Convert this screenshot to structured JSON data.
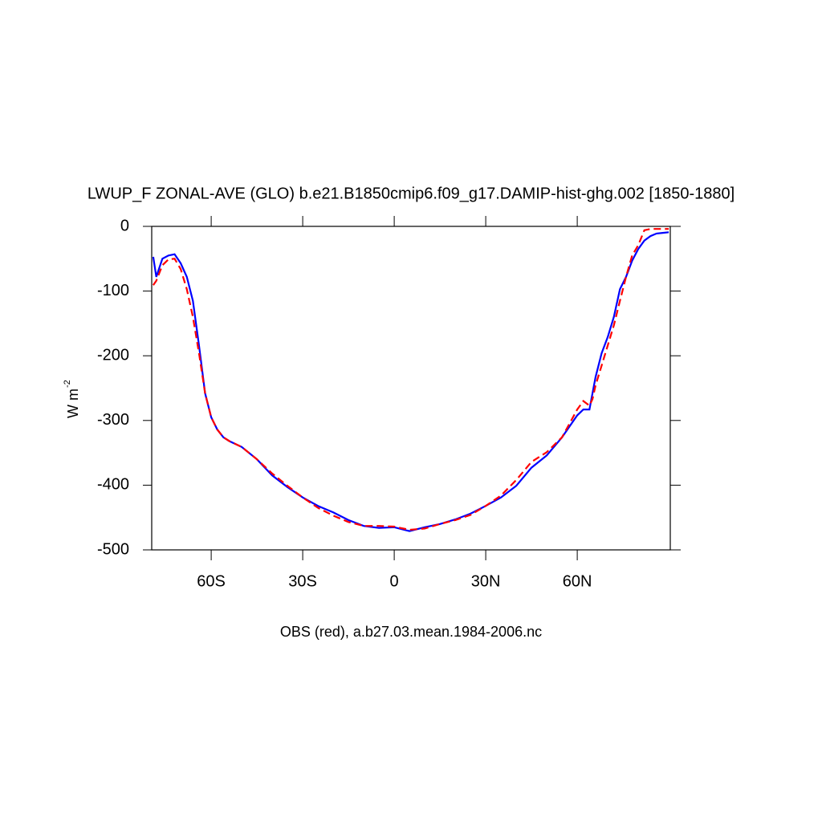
{
  "chart_data": {
    "type": "line",
    "title": "LWUP_F ZONAL-AVE (GLO) b.e21.B1850cmip6.f09_g17.DAMIP-hist-ghg.002 [1850-1880]",
    "x_label": "OBS (red), a.b27.03.mean.1984-2006.nc",
    "y_label": {
      "text": "W m",
      "superscript": "-2"
    },
    "x": [
      -79,
      -78,
      -76,
      -74,
      -72,
      -70,
      -68,
      -66,
      -64,
      -62,
      -60,
      -58,
      -56,
      -54,
      -50,
      -45,
      -40,
      -35,
      -30,
      -25,
      -20,
      -15,
      -10,
      -5,
      0,
      5,
      10,
      15,
      20,
      25,
      30,
      35,
      40,
      45,
      50,
      55,
      60,
      62,
      64,
      65,
      66,
      68,
      70,
      72,
      74,
      76,
      78,
      80,
      82,
      84,
      86,
      88,
      90
    ],
    "series": [
      {
        "color": "#0000ff",
        "dash": "solid",
        "values": [
          -47,
          -78,
          -50,
          -45,
          -43,
          -57,
          -78,
          -115,
          -184,
          -258,
          -295,
          -314,
          -326,
          -332,
          -341,
          -360,
          -385,
          -403,
          -419,
          -432,
          -442,
          -454,
          -463,
          -466,
          -465,
          -471,
          -465,
          -460,
          -453,
          -444,
          -432,
          -419,
          -401,
          -373,
          -354,
          -326,
          -292,
          -283,
          -283,
          -258,
          -233,
          -196,
          -171,
          -140,
          -97,
          -78,
          -53,
          -35,
          -22,
          -15,
          -11,
          -10,
          -9
        ]
      },
      {
        "color": "#ff0000",
        "dash": "dashed",
        "values": [
          -91,
          -84,
          -60,
          -51,
          -50,
          -66,
          -97,
          -140,
          -196,
          -258,
          -295,
          -314,
          -326,
          -332,
          -341,
          -360,
          -382,
          -401,
          -419,
          -435,
          -447,
          -457,
          -463,
          -463,
          -464,
          -469,
          -467,
          -460,
          -454,
          -446,
          -432,
          -416,
          -392,
          -364,
          -349,
          -326,
          -283,
          -270,
          -277,
          -267,
          -246,
          -215,
          -184,
          -153,
          -115,
          -78,
          -45,
          -29,
          -6,
          -4,
          -4,
          -4,
          -4
        ]
      }
    ],
    "xlim": [
      -79.5,
      90.5
    ],
    "ylim": [
      -500,
      0
    ],
    "xticks": [
      {
        "value": -60,
        "label": "60S"
      },
      {
        "value": -30,
        "label": "30S"
      },
      0,
      {
        "value": 30,
        "label": "30N"
      },
      {
        "value": 60,
        "label": "60N"
      }
    ],
    "yticks": [
      0,
      -100,
      -200,
      -300,
      -400,
      -500
    ]
  }
}
